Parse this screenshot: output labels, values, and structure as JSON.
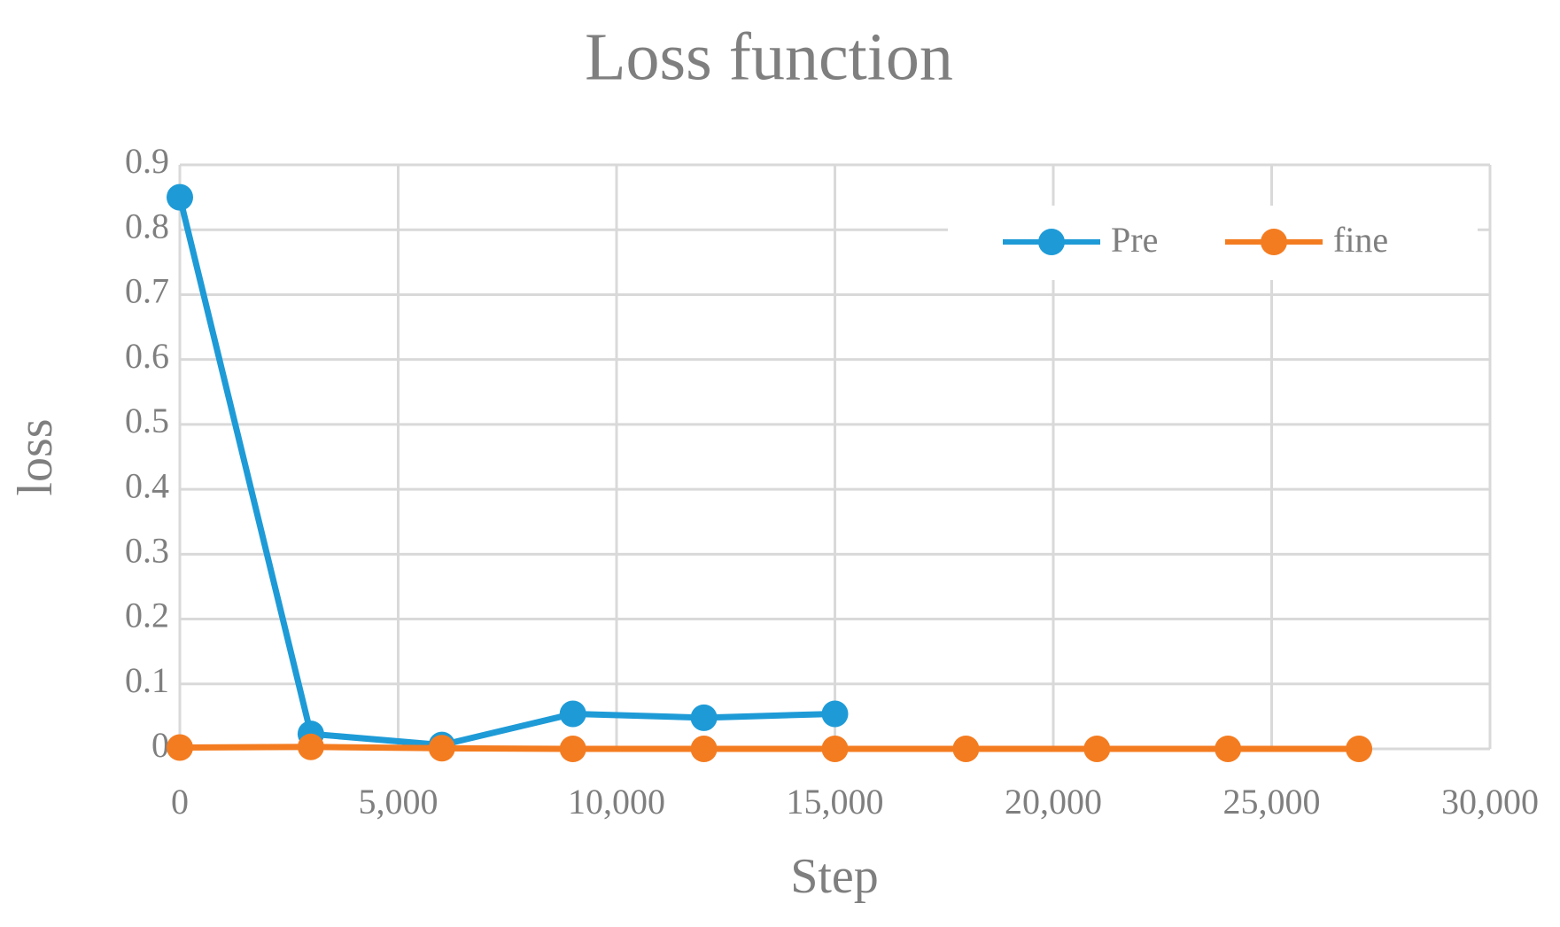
{
  "chart_data": {
    "type": "line",
    "title": "Loss function",
    "x_label": "Step",
    "y_label": "loss",
    "series": [
      {
        "name": "Pre",
        "color": "#1e9bd7",
        "x": [
          0,
          3000,
          6000,
          9000,
          12000,
          15000
        ],
        "values": [
          0.85,
          0.023,
          0.006,
          0.054,
          0.048,
          0.054
        ]
      },
      {
        "name": "fine",
        "color": "#f47c20",
        "x": [
          0,
          3000,
          6000,
          9000,
          12000,
          15000,
          18000,
          21000,
          24000,
          27000
        ],
        "values": [
          0.002,
          0.003,
          0.001,
          0,
          0,
          0,
          0,
          0,
          0,
          0
        ]
      }
    ],
    "xlim": [
      0,
      30000
    ],
    "xticks": [
      0,
      {
        "value": 5000,
        "label": "5,000"
      },
      {
        "value": 10000,
        "label": "10,000"
      },
      {
        "value": 15000,
        "label": "15,000"
      },
      {
        "value": 20000,
        "label": "20,000"
      },
      {
        "value": 25000,
        "label": "25,000"
      },
      {
        "value": 30000,
        "label": "30,000"
      }
    ],
    "ylim": [
      0,
      0.9
    ],
    "yticks": [
      0,
      0.1,
      0.2,
      0.3,
      0.4,
      0.5,
      0.6,
      0.7,
      0.8,
      0.9
    ],
    "grid": true,
    "legend": "upper right"
  }
}
